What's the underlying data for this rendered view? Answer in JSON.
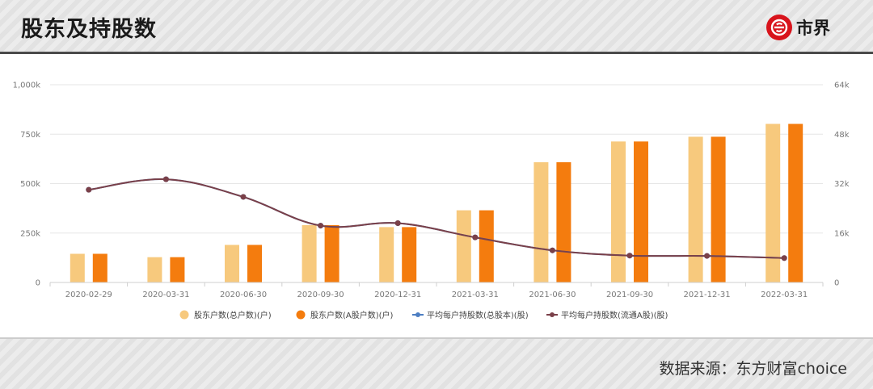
{
  "page": {
    "title": "股东及持股数",
    "logo_text": "市界",
    "source": "数据来源：东方财富choice"
  },
  "colors": {
    "bar_total": "#f7c97d",
    "bar_a": "#f47c0e",
    "line_total": "#4d7ec2",
    "line_a": "#7a4049",
    "grid": "#e6e6e6",
    "brand_red": "#d8141c"
  },
  "chart_data": {
    "type": "bar",
    "categories": [
      "2020-02-29",
      "2020-03-31",
      "2020-06-30",
      "2020-09-30",
      "2020-12-31",
      "2021-03-31",
      "2021-06-30",
      "2021-09-30",
      "2021-12-31",
      "2022-03-31"
    ],
    "series": [
      {
        "name": "股东户数(总户数)(户)",
        "type": "bar",
        "axis": "left",
        "values": [
          145000,
          128000,
          190000,
          290000,
          280000,
          365000,
          608000,
          713000,
          737000,
          802000
        ]
      },
      {
        "name": "股东户数(A股户数)(户)",
        "type": "bar",
        "axis": "left",
        "values": [
          145000,
          128000,
          190000,
          290000,
          280000,
          365000,
          608000,
          713000,
          737000,
          802000
        ]
      },
      {
        "name": "平均每户持股数(总股本)(股)",
        "type": "line",
        "axis": "right",
        "values": [
          30000,
          33400,
          27700,
          18400,
          19200,
          14600,
          10400,
          8700,
          8600,
          7900
        ]
      },
      {
        "name": "平均每户持股数(流通A股)(股)",
        "type": "line",
        "axis": "right",
        "values": [
          30000,
          33400,
          27700,
          18400,
          19200,
          14600,
          10400,
          8700,
          8600,
          7900
        ]
      }
    ],
    "y_left": {
      "ticks": [
        "0",
        "250k",
        "500k",
        "750k",
        "1,000k"
      ],
      "ylim": [
        0,
        1000000
      ]
    },
    "y_right": {
      "ticks": [
        "0",
        "16k",
        "32k",
        "48k",
        "64k"
      ],
      "ylim": [
        0,
        64000
      ]
    },
    "legend_position": "bottom",
    "grid": true
  }
}
